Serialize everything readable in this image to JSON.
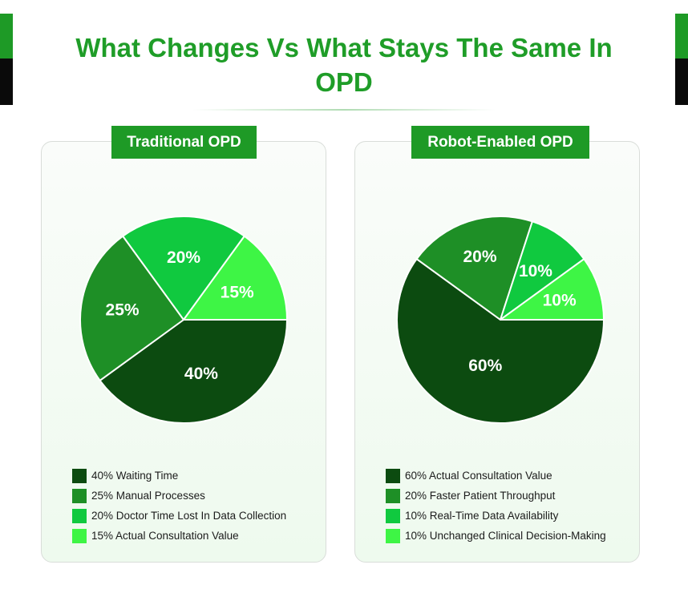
{
  "title": "What Changes Vs What Stays The Same In OPD",
  "colors": {
    "brand_green": "#1e9a26",
    "dark_green": "#0c4b10",
    "mid_green": "#1e8f26",
    "bright_green": "#10c93f",
    "light_green": "#3ef545"
  },
  "chart_data": [
    {
      "type": "pie",
      "title": "Traditional OPD",
      "slices": [
        {
          "label": "Waiting Time",
          "value": 40,
          "display": "40%",
          "legend": "40% Waiting Time",
          "color": "#0c4b10"
        },
        {
          "label": "Manual Processes",
          "value": 25,
          "display": "25%",
          "legend": "25% Manual Processes",
          "color": "#1e8f26"
        },
        {
          "label": "Doctor Time Lost In Data Collection",
          "value": 20,
          "display": "20%",
          "legend": "20% Doctor Time Lost In Data Collection",
          "color": "#10c93f"
        },
        {
          "label": "Actual Consultation Value",
          "value": 15,
          "display": "15%",
          "legend": "15% Actual Consultation Value",
          "color": "#3ef545"
        }
      ]
    },
    {
      "type": "pie",
      "title": "Robot-Enabled OPD",
      "slices": [
        {
          "label": "Actual Consultation Value",
          "value": 60,
          "display": "60%",
          "legend": "60% Actual Consultation Value",
          "color": "#0c4b10"
        },
        {
          "label": "Faster Patient Throughput",
          "value": 20,
          "display": "20%",
          "legend": "20% Faster Patient Throughput",
          "color": "#1e8f26"
        },
        {
          "label": "Real-Time Data Availability",
          "value": 10,
          "display": "10%",
          "legend": "10% Real-Time Data Availability",
          "color": "#10c93f"
        },
        {
          "label": "Unchanged Clinical Decision-Making",
          "value": 10,
          "display": "10%",
          "legend": "10% Unchanged Clinical Decision-Making",
          "color": "#3ef545"
        }
      ]
    }
  ]
}
